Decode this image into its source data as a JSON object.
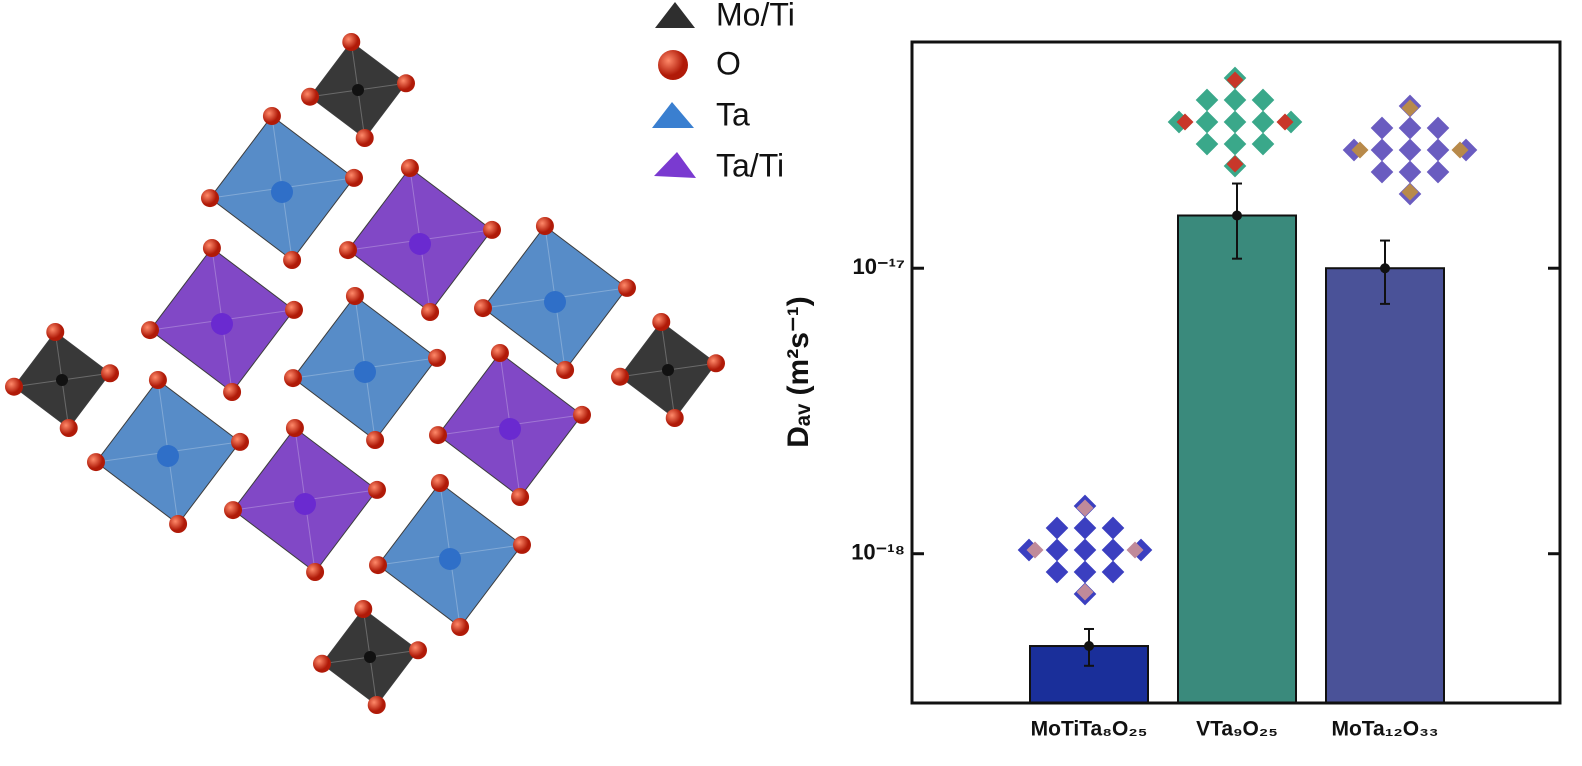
{
  "structure_legend": [
    "Mo/Ti",
    "O",
    "Ta",
    "Ta/Ti"
  ],
  "chart_data": {
    "type": "bar",
    "ylabel": "Dₐᵥ (m²s⁻¹)",
    "categories": [
      "MoTiTa₈O₂₅",
      "VTa₉O₂₅",
      "MoTa₁₂O₃₃"
    ],
    "values": [
      4.75e-19,
      1.53e-17,
      1e-17
    ],
    "errors": [
      7e-20,
      4.5e-18,
      2.5e-18
    ],
    "colors": [
      "#1a2f9a",
      "#3a8a7c",
      "#4a5298"
    ],
    "log_scale": true,
    "ylim": [
      3e-19,
      6.2e-17
    ],
    "yticks": [
      {
        "value": 1e-18,
        "label": "10⁻¹⁸"
      },
      {
        "value": 1e-17,
        "label": "10⁻¹⁷"
      }
    ]
  }
}
